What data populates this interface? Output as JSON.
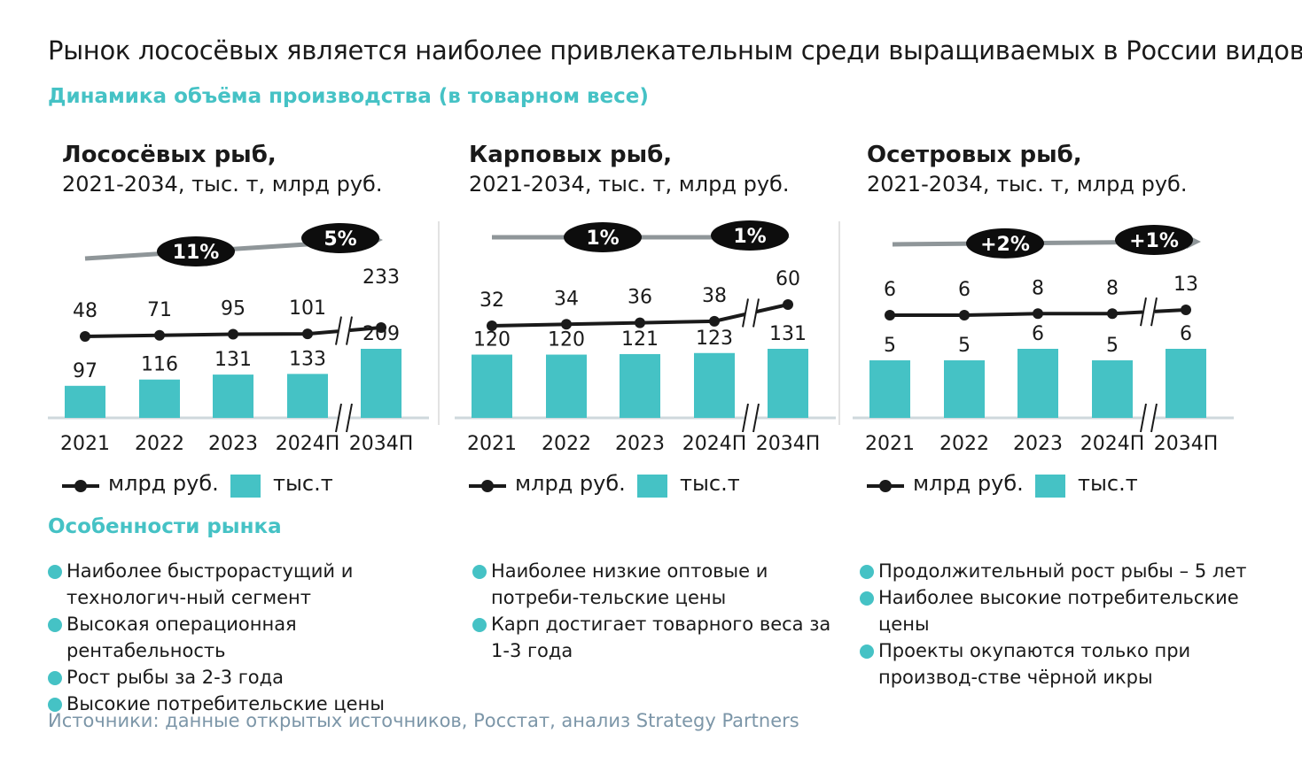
{
  "title": "Рынок лососёвых является наиболее привлекательным среди выращиваемых в России видов рыб",
  "subtitle": "Динамика объёма производства (в товарном весе)",
  "colors": {
    "accent": "#45c2c5",
    "line": "#1a1a1a",
    "badge": "#0d0d0d",
    "arrow": "#8f9699",
    "axis": "#cfd8dc"
  },
  "legend": {
    "line_label": "млрд руб.",
    "bar_label": "тыс.т"
  },
  "panels": [
    {
      "title": "Лососёвых рыб,",
      "subtitle": "2021-2034, тыс. т, млрд руб."
    },
    {
      "title": "Карповых рыб,",
      "subtitle": "2021-2034, тыс. т, млрд руб."
    },
    {
      "title": "Осетровых рыб,",
      "subtitle": "2021-2034, тыс. т, млрд руб."
    }
  ],
  "features_title": "Особенности рынка",
  "features": [
    [
      "Наиболее быстрорастущий и технологич-ный сегмент",
      "Высокая операционная рентабельность",
      "Рост рыбы за 2-3 года",
      "Высокие потребительские цены"
    ],
    [
      "Наиболее низкие оптовые и потреби-тельские цены",
      "Карп достигает товарного веса за 1-3 года"
    ],
    [
      "Продолжительный рост рыбы – 5 лет",
      "Наиболее высокие потребительские цены",
      "Проекты окупаются только при производ-стве чёрной икры"
    ]
  ],
  "source": "Источники: данные открытых источников, Росстат, анализ Strategy Partners",
  "chart_data": [
    {
      "type": "bar",
      "categories": [
        "2021",
        "2022",
        "2023",
        "2024П",
        "2034П"
      ],
      "axis_break": "between 2024П and 2034П",
      "series": [
        {
          "name": "тыс.т",
          "type": "bar",
          "values": [
            97,
            116,
            131,
            133,
            209
          ]
        },
        {
          "name": "млрд руб.",
          "type": "line",
          "values": [
            48,
            71,
            95,
            101,
            233
          ]
        }
      ],
      "growth_badges": [
        "11%",
        "5%"
      ]
    },
    {
      "type": "bar",
      "categories": [
        "2021",
        "2022",
        "2023",
        "2024П",
        "2034П"
      ],
      "axis_break": "between 2024П and 2034П",
      "series": [
        {
          "name": "тыс.т",
          "type": "bar",
          "values": [
            120,
            120,
            121,
            123,
            131
          ]
        },
        {
          "name": "млрд руб.",
          "type": "line",
          "values": [
            32,
            34,
            36,
            38,
            60
          ]
        }
      ],
      "growth_badges": [
        "1%",
        "1%"
      ]
    },
    {
      "type": "bar",
      "categories": [
        "2021",
        "2022",
        "2023",
        "2024П",
        "2034П"
      ],
      "axis_break": "between 2024П and 2034П",
      "series": [
        {
          "name": "тыс.т",
          "type": "bar",
          "values": [
            5,
            5,
            6,
            5,
            6
          ]
        },
        {
          "name": "млрд руб.",
          "type": "line",
          "values": [
            6,
            6,
            8,
            8,
            13
          ]
        }
      ],
      "growth_badges": [
        "+2%",
        "+1%"
      ]
    }
  ]
}
